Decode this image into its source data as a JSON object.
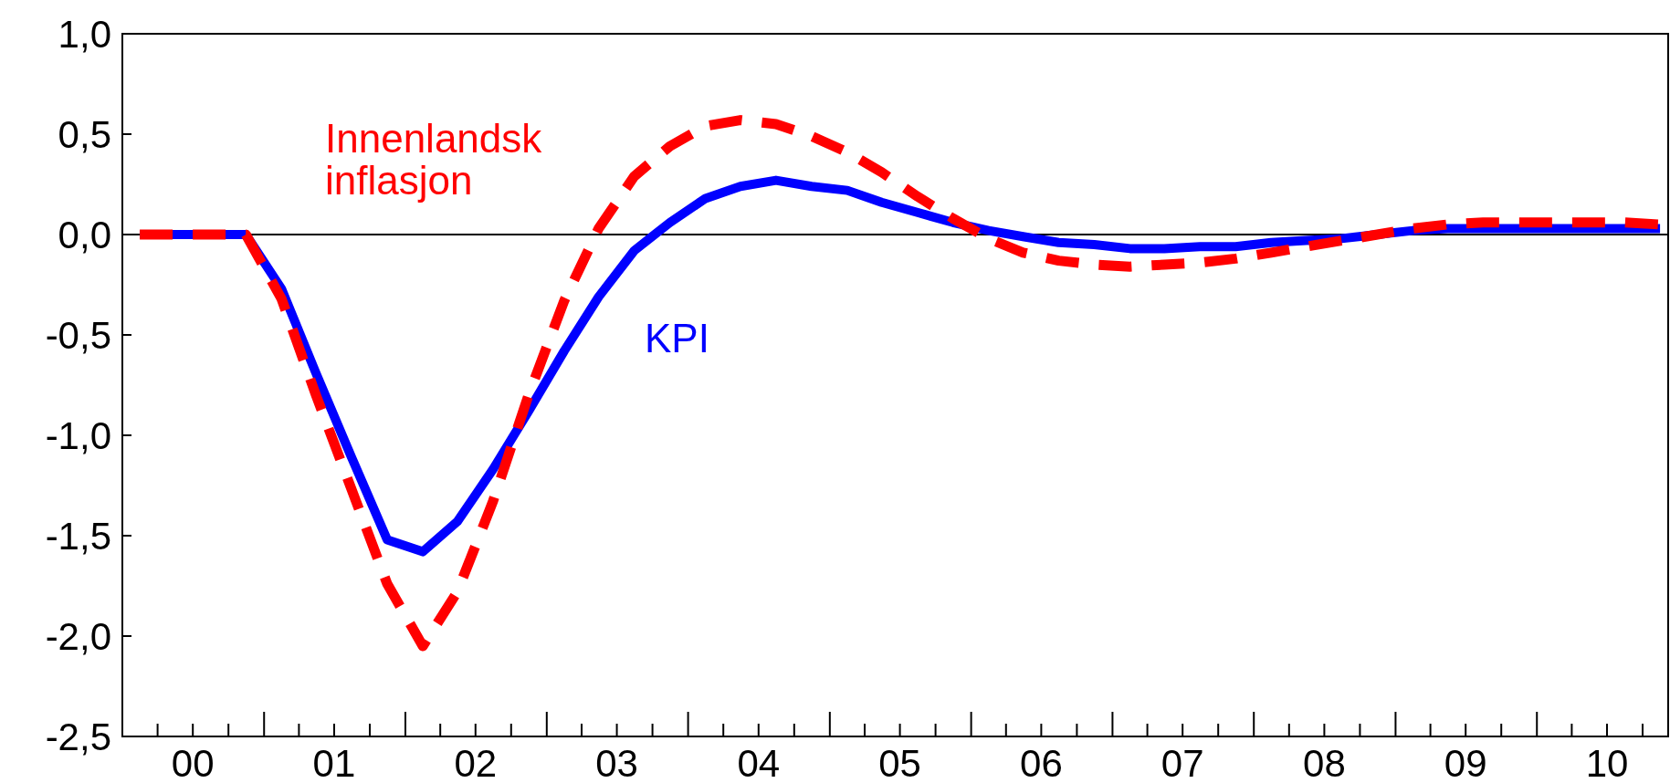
{
  "chart_data": {
    "type": "line",
    "x": [
      "2000-02-15",
      "2000-05-15",
      "2000-08-15",
      "2000-11-15",
      "2001-02-15",
      "2001-05-15",
      "2001-08-15",
      "2001-11-15",
      "2002-02-15",
      "2002-05-15",
      "2002-08-15",
      "2002-11-15",
      "2003-02-15",
      "2003-05-15",
      "2003-08-15",
      "2003-11-15",
      "2004-02-15",
      "2004-05-15",
      "2004-08-15",
      "2004-11-15",
      "2005-02-15",
      "2005-05-15",
      "2005-08-15",
      "2005-11-15",
      "2006-02-15",
      "2006-05-15",
      "2006-08-15",
      "2006-11-15",
      "2007-02-15",
      "2007-05-15",
      "2007-08-15",
      "2007-11-15",
      "2008-02-15",
      "2008-05-15",
      "2008-08-15",
      "2008-11-15",
      "2009-02-15",
      "2009-05-15",
      "2009-08-15",
      "2009-11-15",
      "2010-02-15",
      "2010-05-15",
      "2010-08-15",
      "2010-11-15"
    ],
    "series": [
      {
        "name": "KPI",
        "color": "#0000ff",
        "line_style": "solid",
        "values": [
          0,
          0,
          0,
          0,
          -0.27,
          -0.69,
          -1.11,
          -1.52,
          -1.58,
          -1.43,
          -1.17,
          -0.88,
          -0.58,
          -0.31,
          -0.08,
          0.06,
          0.18,
          0.24,
          0.27,
          0.24,
          0.22,
          0.16,
          0.11,
          0.06,
          0.02,
          -0.01,
          -0.04,
          -0.05,
          -0.07,
          -0.07,
          -0.06,
          -0.06,
          -0.04,
          -0.03,
          -0.02,
          0,
          0.02,
          0.03,
          0.03,
          0.03,
          0.03,
          0.03,
          0.03,
          0.03
        ]
      },
      {
        "name": "Innenlandsk inflasjon",
        "color": "#ff0000",
        "line_style": "dashed",
        "values": [
          0,
          0,
          0,
          0,
          -0.32,
          -0.8,
          -1.27,
          -1.74,
          -2.05,
          -1.78,
          -1.33,
          -0.8,
          -0.33,
          0.03,
          0.29,
          0.44,
          0.54,
          0.57,
          0.55,
          0.49,
          0.41,
          0.31,
          0.19,
          0.08,
          -0.02,
          -0.09,
          -0.13,
          -0.15,
          -0.16,
          -0.15,
          -0.14,
          -0.12,
          -0.09,
          -0.06,
          -0.03,
          0,
          0.03,
          0.05,
          0.06,
          0.06,
          0.06,
          0.06,
          0.06,
          0.05
        ]
      }
    ],
    "xlim": [
      "2000-01-01",
      "2010-12-06"
    ],
    "xticks": [
      {
        "value": "2000-04-01",
        "label": null
      },
      {
        "value": "2000-07-01",
        "label": "00"
      },
      {
        "value": "2000-10-01",
        "label": null
      },
      {
        "value": "2001-01-01",
        "label": null
      },
      {
        "value": "2001-04-01",
        "label": null
      },
      {
        "value": "2001-07-01",
        "label": "01"
      },
      {
        "value": "2001-10-01",
        "label": null
      },
      {
        "value": "2002-01-01",
        "label": null
      },
      {
        "value": "2002-04-01",
        "label": null
      },
      {
        "value": "2002-07-01",
        "label": "02"
      },
      {
        "value": "2002-10-01",
        "label": null
      },
      {
        "value": "2003-01-01",
        "label": null
      },
      {
        "value": "2003-04-01",
        "label": null
      },
      {
        "value": "2003-07-01",
        "label": "03"
      },
      {
        "value": "2003-10-01",
        "label": null
      },
      {
        "value": "2004-01-01",
        "label": null
      },
      {
        "value": "2004-04-01",
        "label": null
      },
      {
        "value": "2004-07-01",
        "label": "04"
      },
      {
        "value": "2004-10-01",
        "label": null
      },
      {
        "value": "2005-01-01",
        "label": null
      },
      {
        "value": "2005-04-01",
        "label": null
      },
      {
        "value": "2005-07-01",
        "label": "05"
      },
      {
        "value": "2005-10-01",
        "label": null
      },
      {
        "value": "2006-01-01",
        "label": null
      },
      {
        "value": "2006-04-01",
        "label": null
      },
      {
        "value": "2006-07-01",
        "label": "06"
      },
      {
        "value": "2006-10-01",
        "label": null
      },
      {
        "value": "2007-01-01",
        "label": null
      },
      {
        "value": "2007-04-01",
        "label": null
      },
      {
        "value": "2007-07-01",
        "label": "07"
      },
      {
        "value": "2007-10-01",
        "label": null
      },
      {
        "value": "2008-01-01",
        "label": null
      },
      {
        "value": "2008-04-01",
        "label": null
      },
      {
        "value": "2008-07-01",
        "label": "08"
      },
      {
        "value": "2008-10-01",
        "label": null
      },
      {
        "value": "2009-01-01",
        "label": null
      },
      {
        "value": "2009-04-01",
        "label": null
      },
      {
        "value": "2009-07-01",
        "label": "09"
      },
      {
        "value": "2009-10-01",
        "label": null
      },
      {
        "value": "2010-01-01",
        "label": null
      },
      {
        "value": "2010-04-01",
        "label": null
      },
      {
        "value": "2010-07-01",
        "label": "10"
      },
      {
        "value": "2010-10-01",
        "label": null
      }
    ],
    "ylim": [
      -2.5,
      1.0
    ],
    "yticks": [
      {
        "value": -2.5,
        "label": "-2,5"
      },
      {
        "value": -2,
        "label": "-2,0"
      },
      {
        "value": -1.5,
        "label": "-1,5"
      },
      {
        "value": -1,
        "label": "-1,0"
      },
      {
        "value": -0.5,
        "label": "-0,5"
      },
      {
        "value": 0,
        "label": "0,0"
      },
      {
        "value": 0.5,
        "label": "0,5"
      },
      {
        "value": 1,
        "label": "1,0"
      }
    ],
    "ref_lines": [
      {
        "axis": "y",
        "value": 0,
        "color": "#000000"
      }
    ],
    "grid": false,
    "legend": false,
    "marker": "none"
  }
}
